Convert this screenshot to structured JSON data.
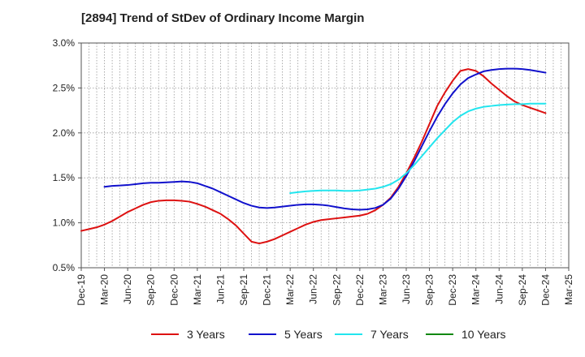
{
  "chart_data": {
    "type": "line",
    "title": "[2894]  Trend of StDev of Ordinary Income Margin",
    "xlabel": "",
    "ylabel": "",
    "x_ticks": [
      "Dec-19",
      "Mar-20",
      "Jun-20",
      "Sep-20",
      "Dec-20",
      "Mar-21",
      "Jun-21",
      "Sep-21",
      "Dec-21",
      "Mar-22",
      "Jun-22",
      "Sep-22",
      "Dec-22",
      "Mar-23",
      "Jun-23",
      "Sep-23",
      "Dec-23",
      "Mar-24",
      "Jun-24",
      "Sep-24",
      "Dec-24",
      "Mar-25"
    ],
    "y_ticks": [
      "0.5%",
      "1.0%",
      "1.5%",
      "2.0%",
      "2.5%",
      "3.0%"
    ],
    "ylim": [
      0.5,
      3.0
    ],
    "grid": true,
    "legend_position": "bottom",
    "colors": {
      "3 Years": "#dd1111",
      "5 Years": "#1111cc",
      "7 Years": "#22e5ee",
      "10 Years": "#118811"
    },
    "series": [
      {
        "name": "3 Years",
        "x": [
          "Dec-19",
          "Jan-20",
          "Feb-20",
          "Mar-20",
          "Apr-20",
          "May-20",
          "Jun-20",
          "Jul-20",
          "Aug-20",
          "Sep-20",
          "Oct-20",
          "Nov-20",
          "Dec-20",
          "Jan-21",
          "Feb-21",
          "Mar-21",
          "Apr-21",
          "May-21",
          "Jun-21",
          "Jul-21",
          "Aug-21",
          "Sep-21",
          "Oct-21",
          "Nov-21",
          "Dec-21",
          "Jan-22",
          "Feb-22",
          "Mar-22",
          "Apr-22",
          "May-22",
          "Jun-22",
          "Jul-22",
          "Aug-22",
          "Sep-22",
          "Oct-22",
          "Nov-22",
          "Dec-22",
          "Jan-23",
          "Feb-23",
          "Mar-23",
          "Apr-23",
          "May-23",
          "Jun-23",
          "Jul-23",
          "Aug-23",
          "Sep-23",
          "Oct-23",
          "Nov-23",
          "Dec-23",
          "Jan-24",
          "Feb-24",
          "Mar-24",
          "Apr-24",
          "May-24",
          "Jun-24",
          "Jul-24",
          "Aug-24",
          "Sep-24",
          "Oct-24",
          "Nov-24",
          "Dec-24"
        ],
        "values": [
          0.91,
          0.93,
          0.95,
          0.98,
          1.02,
          1.07,
          1.12,
          1.16,
          1.2,
          1.23,
          1.245,
          1.25,
          1.25,
          1.245,
          1.235,
          1.21,
          1.18,
          1.14,
          1.1,
          1.04,
          0.97,
          0.88,
          0.79,
          0.77,
          0.79,
          0.82,
          0.86,
          0.9,
          0.94,
          0.98,
          1.01,
          1.03,
          1.04,
          1.05,
          1.06,
          1.07,
          1.08,
          1.1,
          1.14,
          1.2,
          1.28,
          1.4,
          1.55,
          1.72,
          1.9,
          2.1,
          2.3,
          2.45,
          2.58,
          2.69,
          2.71,
          2.69,
          2.63,
          2.55,
          2.48,
          2.41,
          2.35,
          2.31,
          2.28,
          2.25,
          2.22
        ]
      },
      {
        "name": "5 Years",
        "x": [
          "Mar-20",
          "Apr-20",
          "May-20",
          "Jun-20",
          "Jul-20",
          "Aug-20",
          "Sep-20",
          "Oct-20",
          "Nov-20",
          "Dec-20",
          "Jan-21",
          "Feb-21",
          "Mar-21",
          "Apr-21",
          "May-21",
          "Jun-21",
          "Jul-21",
          "Aug-21",
          "Sep-21",
          "Oct-21",
          "Nov-21",
          "Dec-21",
          "Jan-22",
          "Feb-22",
          "Mar-22",
          "Apr-22",
          "May-22",
          "Jun-22",
          "Jul-22",
          "Aug-22",
          "Sep-22",
          "Oct-22",
          "Nov-22",
          "Dec-22",
          "Jan-23",
          "Feb-23",
          "Mar-23",
          "Apr-23",
          "May-23",
          "Jun-23",
          "Jul-23",
          "Aug-23",
          "Sep-23",
          "Oct-23",
          "Nov-23",
          "Dec-23",
          "Jan-24",
          "Feb-24",
          "Mar-24",
          "Apr-24",
          "May-24",
          "Jun-24",
          "Jul-24",
          "Aug-24",
          "Sep-24",
          "Oct-24",
          "Nov-24",
          "Dec-24"
        ],
        "values": [
          1.4,
          1.41,
          1.415,
          1.42,
          1.43,
          1.44,
          1.445,
          1.445,
          1.45,
          1.455,
          1.46,
          1.455,
          1.44,
          1.41,
          1.38,
          1.34,
          1.3,
          1.26,
          1.22,
          1.19,
          1.17,
          1.165,
          1.17,
          1.18,
          1.19,
          1.2,
          1.205,
          1.205,
          1.2,
          1.19,
          1.175,
          1.16,
          1.15,
          1.145,
          1.15,
          1.165,
          1.2,
          1.27,
          1.38,
          1.52,
          1.68,
          1.85,
          2.02,
          2.18,
          2.32,
          2.44,
          2.54,
          2.61,
          2.65,
          2.685,
          2.7,
          2.71,
          2.715,
          2.715,
          2.71,
          2.7,
          2.685,
          2.67
        ]
      },
      {
        "name": "7 Years",
        "x": [
          "Mar-22",
          "Apr-22",
          "May-22",
          "Jun-22",
          "Jul-22",
          "Aug-22",
          "Sep-22",
          "Oct-22",
          "Nov-22",
          "Dec-22",
          "Jan-23",
          "Feb-23",
          "Mar-23",
          "Apr-23",
          "May-23",
          "Jun-23",
          "Jul-23",
          "Aug-23",
          "Sep-23",
          "Oct-23",
          "Nov-23",
          "Dec-23",
          "Jan-24",
          "Feb-24",
          "Mar-24",
          "Apr-24",
          "May-24",
          "Jun-24",
          "Jul-24",
          "Aug-24",
          "Sep-24",
          "Oct-24",
          "Nov-24",
          "Dec-24"
        ],
        "values": [
          1.33,
          1.34,
          1.35,
          1.355,
          1.36,
          1.36,
          1.36,
          1.355,
          1.355,
          1.36,
          1.37,
          1.38,
          1.4,
          1.43,
          1.48,
          1.55,
          1.64,
          1.74,
          1.84,
          1.94,
          2.03,
          2.12,
          2.19,
          2.24,
          2.27,
          2.29,
          2.3,
          2.31,
          2.315,
          2.32,
          2.32,
          2.325,
          2.325,
          2.325
        ]
      },
      {
        "name": "10 Years",
        "x": [],
        "values": []
      }
    ]
  }
}
